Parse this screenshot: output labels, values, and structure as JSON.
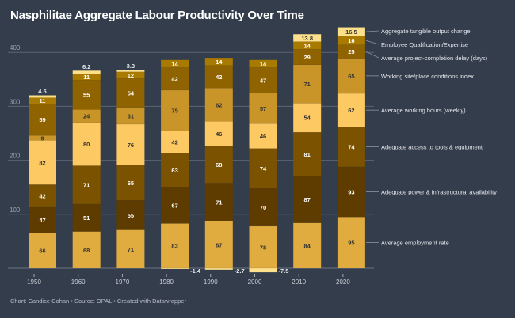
{
  "chart_data": {
    "type": "bar",
    "stacked": true,
    "title": "Nasphilitae Aggregate Labour Productivity Over Time",
    "categories": [
      "1950",
      "1960",
      "1970",
      "1980",
      "1990",
      "2000",
      "2010",
      "2020"
    ],
    "ylim": [
      0,
      450
    ],
    "yticks": [
      100,
      200,
      300,
      400
    ],
    "grid": true,
    "legend": "right, direct labels",
    "series": [
      {
        "name": "Average employment rate",
        "color": "#e0ac3f",
        "values": [
          66,
          68,
          71,
          83,
          87,
          78,
          84,
          95
        ]
      },
      {
        "name": "Adequate power & infrastructural availability",
        "color": "#5e3c00",
        "values": [
          47,
          51,
          55,
          67,
          71,
          70,
          87,
          93
        ]
      },
      {
        "name": "Adequate access to tools & equipment",
        "color": "#7a5200",
        "values": [
          42,
          71,
          65,
          63,
          68,
          74,
          81,
          74
        ]
      },
      {
        "name": "Average working hours (weekly)",
        "color": "#fdc962",
        "values": [
          82,
          80,
          76,
          42,
          46,
          46,
          54,
          62
        ]
      },
      {
        "name": "Working site/place conditions index",
        "color": "#c99528",
        "values": [
          9,
          24,
          31,
          75,
          62,
          57,
          71,
          65
        ]
      },
      {
        "name": "Average project-completion delay (days)",
        "color": "#8e6300",
        "values": [
          59,
          55,
          54,
          42,
          42,
          47,
          29,
          25
        ]
      },
      {
        "name": "Employee Qualification/Expertise",
        "color": "#a97a00",
        "values": [
          11,
          11,
          12,
          14,
          14,
          14,
          14,
          16
        ]
      },
      {
        "name": "Aggregate tangible output change",
        "color": "#fde08a",
        "values": [
          4.5,
          6.2,
          3.3,
          -1.4,
          -2.7,
          -7.5,
          13.8,
          16.5
        ]
      }
    ]
  },
  "footer": "Chart: Candice Cohan • Source: OPAL • Created with Datawrapper",
  "colors": {
    "background": "#333d4c",
    "grid": "#5b6472",
    "text": "#ffffff",
    "muted": "#b8bec8"
  }
}
